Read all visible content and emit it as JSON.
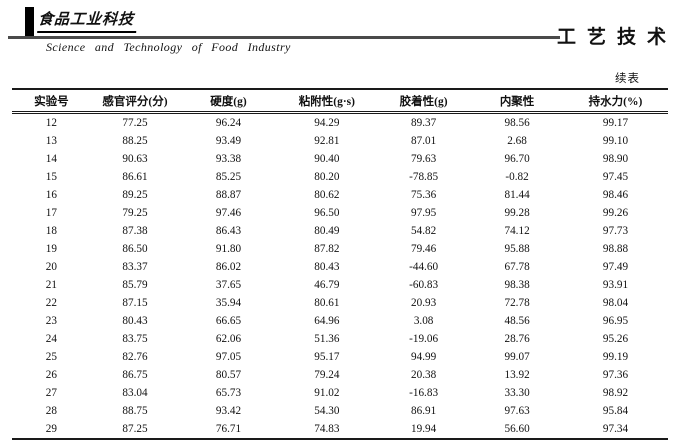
{
  "masthead": {
    "journal_cn": "食品工业科技",
    "journal_en": "Science and Technology of Food Industry",
    "section_label": "工艺技术",
    "continued_table_label": "续表"
  },
  "table": {
    "columns": [
      "实验号",
      "感官评分(分)",
      "硬度(g)",
      "粘附性(g·s)",
      "胶着性(g)",
      "内聚性",
      "持水力(%)"
    ],
    "rows": [
      [
        "12",
        "77.25",
        "96.24",
        "94.29",
        "89.37",
        "98.56",
        "99.17"
      ],
      [
        "13",
        "88.25",
        "93.49",
        "92.81",
        "87.01",
        "2.68",
        "99.10"
      ],
      [
        "14",
        "90.63",
        "93.38",
        "90.40",
        "79.63",
        "96.70",
        "98.90"
      ],
      [
        "15",
        "86.61",
        "85.25",
        "80.20",
        "-78.85",
        "-0.82",
        "97.45"
      ],
      [
        "16",
        "89.25",
        "88.87",
        "80.62",
        "75.36",
        "81.44",
        "98.46"
      ],
      [
        "17",
        "79.25",
        "97.46",
        "96.50",
        "97.95",
        "99.28",
        "99.26"
      ],
      [
        "18",
        "87.38",
        "86.43",
        "80.49",
        "54.82",
        "74.12",
        "97.73"
      ],
      [
        "19",
        "86.50",
        "91.80",
        "87.82",
        "79.46",
        "95.88",
        "98.88"
      ],
      [
        "20",
        "83.37",
        "86.02",
        "80.43",
        "-44.60",
        "67.78",
        "97.49"
      ],
      [
        "21",
        "85.79",
        "37.65",
        "46.79",
        "-60.83",
        "98.38",
        "93.91"
      ],
      [
        "22",
        "87.15",
        "35.94",
        "80.61",
        "20.93",
        "72.78",
        "98.04"
      ],
      [
        "23",
        "80.43",
        "66.65",
        "64.96",
        "3.08",
        "48.56",
        "96.95"
      ],
      [
        "24",
        "83.75",
        "62.06",
        "51.36",
        "-19.06",
        "28.76",
        "95.26"
      ],
      [
        "25",
        "82.76",
        "97.05",
        "95.17",
        "94.99",
        "99.07",
        "99.19"
      ],
      [
        "26",
        "86.75",
        "80.57",
        "79.24",
        "20.38",
        "13.92",
        "97.36"
      ],
      [
        "27",
        "83.04",
        "65.73",
        "91.02",
        "-16.83",
        "33.30",
        "98.92"
      ],
      [
        "28",
        "88.75",
        "93.42",
        "54.30",
        "86.91",
        "97.63",
        "95.84"
      ],
      [
        "29",
        "87.25",
        "76.71",
        "74.83",
        "19.94",
        "56.60",
        "97.34"
      ]
    ]
  }
}
